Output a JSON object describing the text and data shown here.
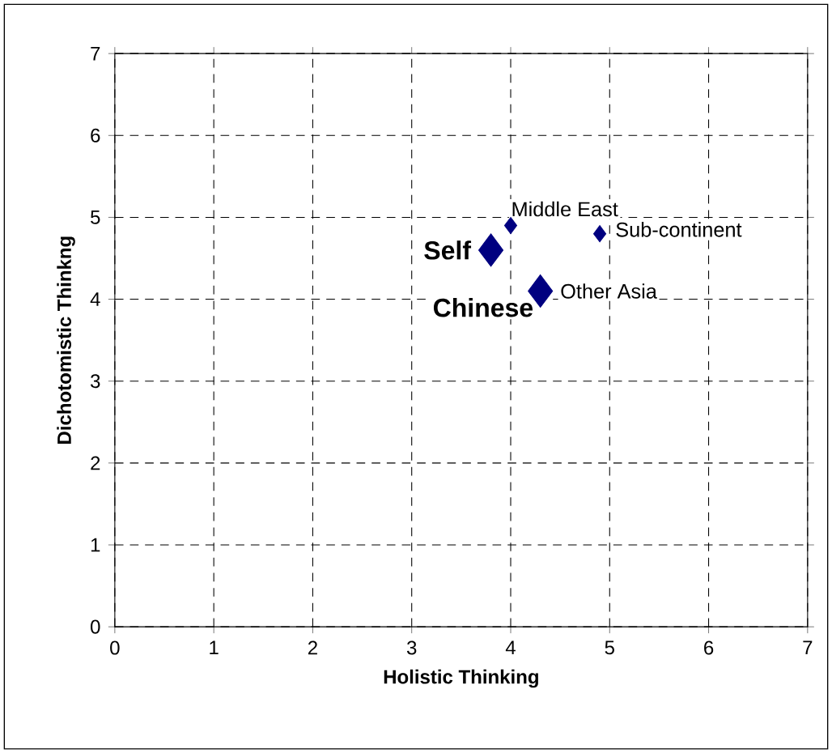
{
  "chart_data": {
    "type": "bubble",
    "xlabel": "Holistic Thinking",
    "ylabel": "Dichotomistic Thinkng",
    "series": [
      {
        "color": "#000080",
        "x": [
          3.8,
          4.3,
          4.0,
          4.9
        ],
        "values": [
          4.6,
          4.1,
          4.9,
          4.8
        ],
        "sizes": [
          1,
          1,
          0.25,
          0.25
        ]
      }
    ],
    "marker": "diamond",
    "xlim": [
      0,
      7
    ],
    "ylim": [
      0,
      7
    ],
    "xticks": [
      0,
      1,
      2,
      3,
      4,
      5,
      6,
      7
    ],
    "yticks": [
      0,
      1,
      2,
      3,
      4,
      5,
      6,
      7
    ],
    "grid": true,
    "annotations": [
      {
        "text": "Self",
        "x": 3.8,
        "y": 4.6
      },
      {
        "text": "Chinese",
        "x": 4.3,
        "y": 4.1
      },
      {
        "text": "Other Asia",
        "x": 4.3,
        "y": 4.1
      },
      {
        "text": "Middle East",
        "x": 4.0,
        "y": 4.9
      },
      {
        "text": "Sub-continent",
        "x": 4.9,
        "y": 4.8
      }
    ]
  }
}
